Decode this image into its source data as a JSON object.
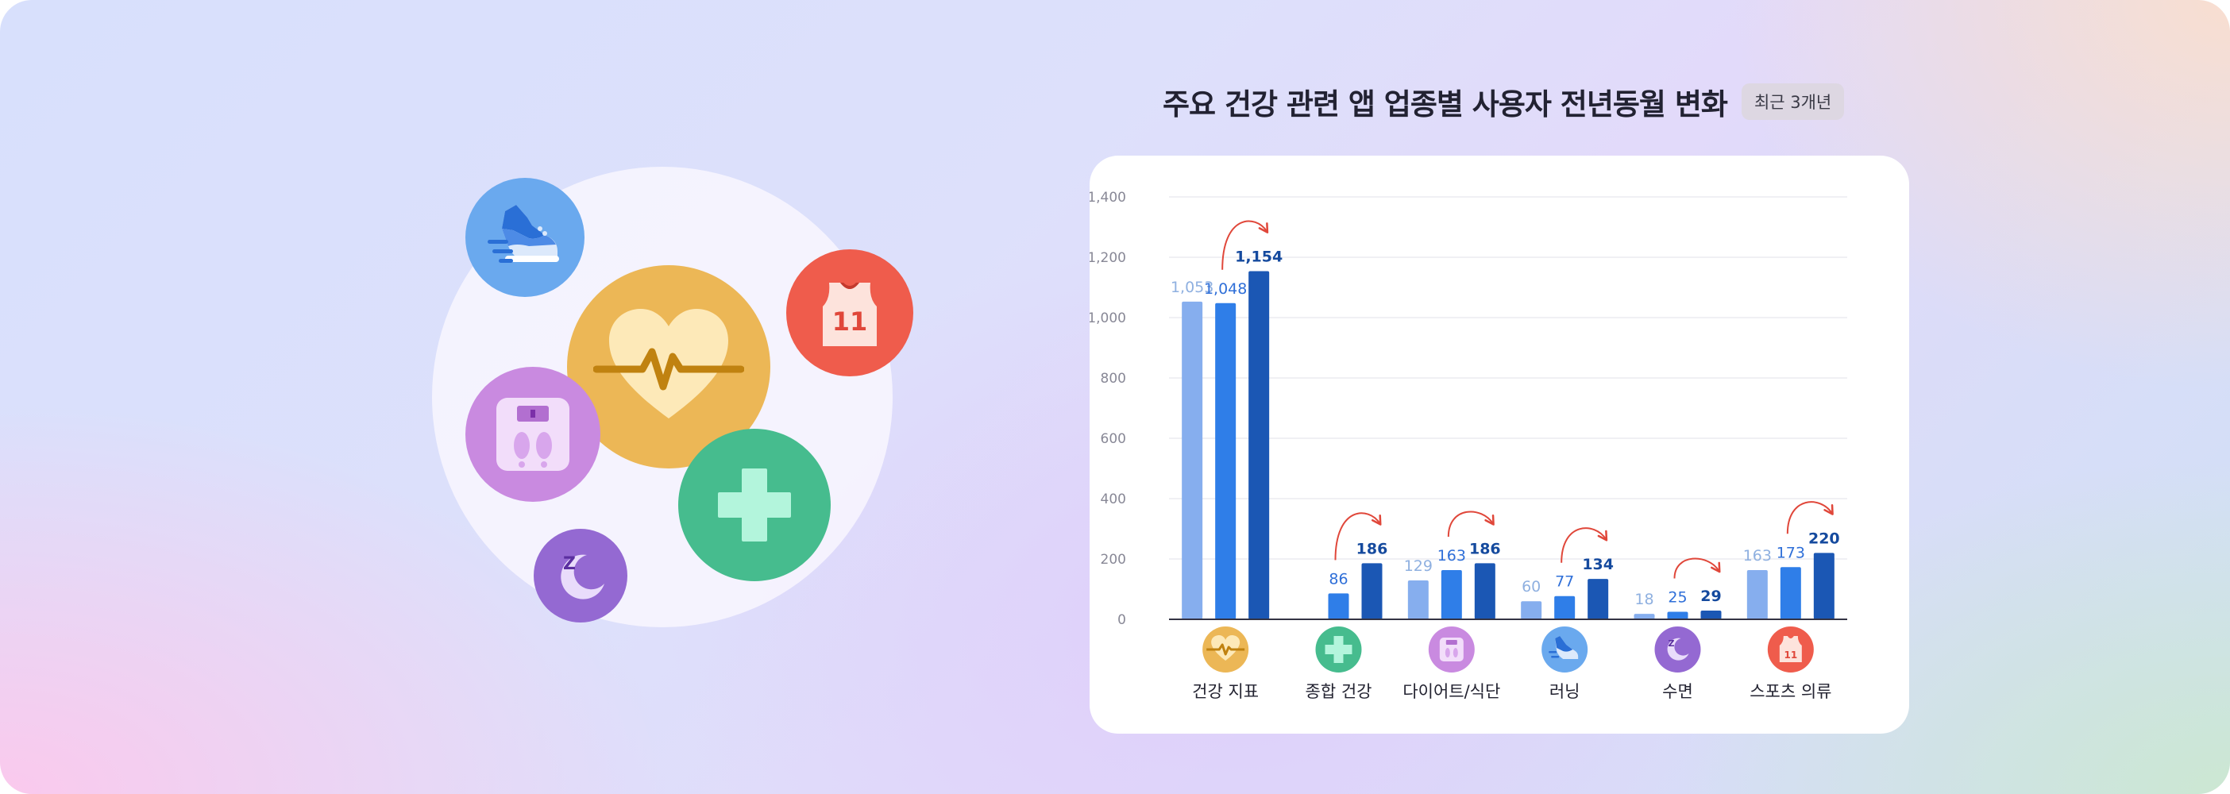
{
  "title": "주요 건강 관련 앱 업종별 사용자 전년동월 변화",
  "badge": "최근 3개년",
  "colors": {
    "bar_series": [
      "#86aeee",
      "#2f7ee8",
      "#1b57b4"
    ],
    "value_labels": [
      "#8fb0e0",
      "#2f6fd8",
      "#154a9e"
    ],
    "arrow": "#e0473a",
    "gridline": "#ececf1",
    "axis": "#333344",
    "tick_label": "#888896"
  },
  "chart_data": {
    "type": "bar",
    "title": "주요 건강 관련 앱 업종별 사용자 전년동월 변화",
    "xlabel": "",
    "ylabel": "",
    "ylim": [
      0,
      1400
    ],
    "yticks": [
      0,
      200,
      400,
      600,
      800,
      1000,
      1200,
      1400
    ],
    "ytick_labels": [
      "0",
      "200",
      "400",
      "600",
      "800",
      "1,000",
      "1,200",
      "1,400"
    ],
    "grid": true,
    "categories": [
      "건강 지표",
      "종합 건강",
      "다이어트/식단",
      "러닝",
      "수면",
      "스포츠 의류"
    ],
    "category_icons": [
      "heart-pulse-icon",
      "medical-cross-icon",
      "scale-icon",
      "running-shoe-icon",
      "moon-sleep-icon",
      "jersey-icon"
    ],
    "category_colors": [
      "#ecb756",
      "#46bc8e",
      "#c98ae0",
      "#6aa9ee",
      "#9469d2",
      "#ef5c4c"
    ],
    "series": [
      {
        "values": [
          1053,
          null,
          129,
          60,
          18,
          163
        ],
        "labels": [
          "1,053",
          "",
          "129",
          "60",
          "18",
          "163"
        ]
      },
      {
        "values": [
          1048,
          86,
          163,
          77,
          25,
          173
        ],
        "labels": [
          "1,048",
          "86",
          "163",
          "77",
          "25",
          "173"
        ]
      },
      {
        "values": [
          1154,
          186,
          186,
          134,
          29,
          220
        ],
        "labels": [
          "1,154",
          "186",
          "186",
          "134",
          "29",
          "220"
        ]
      }
    ],
    "arrows": "curved red arrow from second to third bar in each category"
  },
  "illustration": {
    "bubbles": [
      {
        "icon": "running-shoe-icon",
        "color": "#6aa9ee"
      },
      {
        "icon": "jersey-icon",
        "color": "#ef5c4c",
        "number": "11"
      },
      {
        "icon": "heart-pulse-icon",
        "color": "#ecb756"
      },
      {
        "icon": "scale-icon",
        "color": "#c98ae0"
      },
      {
        "icon": "medical-cross-icon",
        "color": "#46bc8e"
      },
      {
        "icon": "moon-sleep-icon",
        "color": "#9469d2",
        "letter": "Z"
      }
    ]
  }
}
